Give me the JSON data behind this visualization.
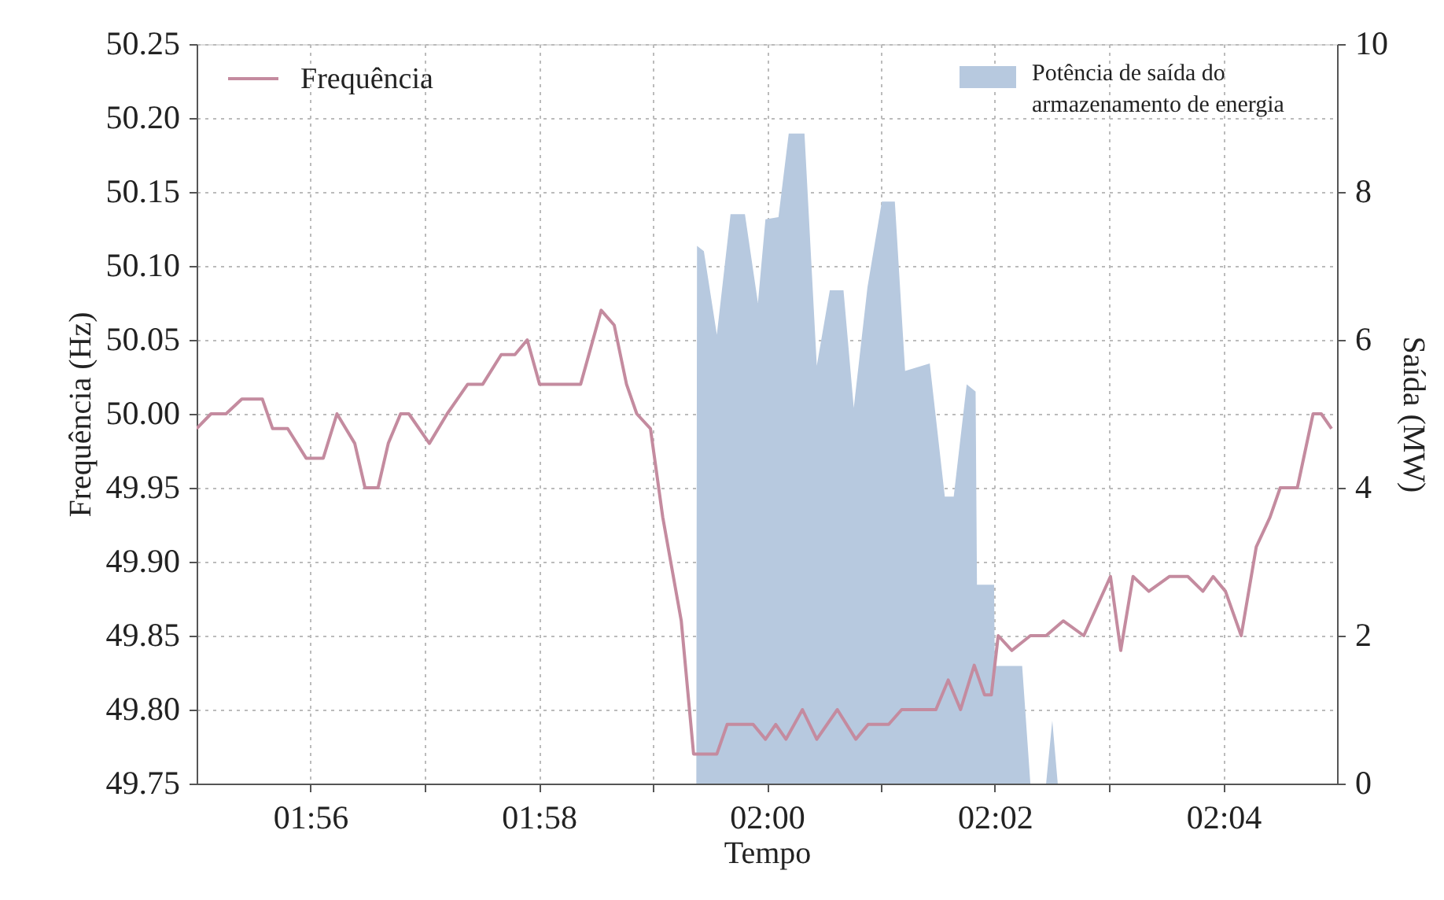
{
  "chart_data": {
    "type": "line",
    "xlabel": "Tempo",
    "ylabel": "Frequência (Hz)",
    "y2label": "Saída (MW)",
    "xlim": [
      1.9167,
      2.0833
    ],
    "xticks": [
      {
        "value": 1.9333,
        "label": "01:56"
      },
      {
        "value": 1.95,
        "label": null
      },
      {
        "value": 1.9667,
        "label": "01:58"
      },
      {
        "value": 1.9833,
        "label": null
      },
      {
        "value": 2.0,
        "label": "02:00"
      },
      {
        "value": 2.0167,
        "label": null
      },
      {
        "value": 2.0333,
        "label": "02:02"
      },
      {
        "value": 2.05,
        "label": null
      },
      {
        "value": 2.0667,
        "label": "02:04"
      }
    ],
    "ylim": [
      49.75,
      50.25
    ],
    "yticks": [
      49.75,
      {
        "value": 49.8,
        "label": "49.80"
      },
      49.85,
      {
        "value": 49.9,
        "label": "49.90"
      },
      49.95,
      {
        "value": 50.0,
        "label": "50.00"
      },
      50.05,
      {
        "value": 50.1,
        "label": "50.10"
      },
      50.15,
      {
        "value": 50.2,
        "label": "50.20"
      },
      50.25
    ],
    "y2lim": [
      0,
      10
    ],
    "y2ticks": [
      0,
      2,
      4,
      6,
      8,
      10
    ],
    "grid": true,
    "legend": "top",
    "line_style": "solid",
    "series": [
      {
        "name": "Potência de saída do armazenamento de energia",
        "type": "area",
        "axis": "y2",
        "color": "#b7c9df",
        "x": [
          1.9897,
          1.9898,
          1.9908,
          1.9927,
          1.9947,
          1.9968,
          1.9987,
          1.9998,
          2.0017,
          2.0032,
          2.0055,
          2.0073,
          2.0092,
          2.0112,
          2.0127,
          2.0147,
          2.0168,
          2.0187,
          2.0202,
          2.0238,
          2.026,
          2.0273,
          2.0292,
          2.0305,
          2.0307,
          2.0332,
          2.0333,
          2.0373,
          2.0385,
          2.0408,
          2.0417,
          2.0425
        ],
        "values": [
          0,
          7.27,
          7.2,
          6.07,
          7.7,
          7.7,
          6.5,
          7.63,
          7.66,
          8.79,
          8.79,
          5.65,
          6.67,
          6.67,
          5.08,
          6.71,
          7.87,
          7.87,
          5.58,
          5.68,
          3.88,
          3.88,
          5.4,
          5.3,
          2.69,
          2.69,
          1.59,
          1.59,
          0,
          0,
          0.85,
          0
        ]
      },
      {
        "name": "Frequência",
        "axis": "y",
        "color": "#c48b9f",
        "x": [
          1.9167,
          1.9188,
          1.921,
          1.9233,
          1.9263,
          1.9278,
          1.93,
          1.9327,
          1.9352,
          1.9372,
          1.9398,
          1.9413,
          1.9432,
          1.9447,
          1.9465,
          1.9477,
          1.9507,
          1.9533,
          1.9563,
          1.9585,
          1.9612,
          1.9632,
          1.965,
          1.9668,
          1.9683,
          1.9728,
          1.9758,
          1.9777,
          1.9795,
          1.981,
          1.983,
          1.9848,
          1.9875,
          1.9887,
          1.9893,
          1.9908,
          1.9927,
          1.9942,
          1.9962,
          1.998,
          1.9998,
          2.0013,
          2.0028,
          2.0052,
          2.0073,
          2.0103,
          2.013,
          2.0148,
          2.0178,
          2.0197,
          2.0223,
          2.0247,
          2.0265,
          2.0283,
          2.0303,
          2.0318,
          2.0328,
          2.0338,
          2.0358,
          2.0385,
          2.0408,
          2.0433,
          2.0463,
          2.0502,
          2.0517,
          2.0535,
          2.0558,
          2.0588,
          2.0615,
          2.0637,
          2.0652,
          2.067,
          2.0693,
          2.0715,
          2.0735,
          2.075,
          2.0775,
          2.0798,
          2.081,
          2.0825
        ],
        "values": [
          49.99,
          50.0,
          50.0,
          50.01,
          50.01,
          49.99,
          49.99,
          49.97,
          49.97,
          50.0,
          49.98,
          49.95,
          49.95,
          49.98,
          50.0,
          50.0,
          49.98,
          50.0,
          50.02,
          50.02,
          50.04,
          50.04,
          50.05,
          50.02,
          50.02,
          50.02,
          50.07,
          50.06,
          50.02,
          50.0,
          49.99,
          49.93,
          49.86,
          49.8,
          49.77,
          49.77,
          49.77,
          49.79,
          49.79,
          49.79,
          49.78,
          49.79,
          49.78,
          49.8,
          49.78,
          49.8,
          49.78,
          49.79,
          49.79,
          49.8,
          49.8,
          49.8,
          49.82,
          49.8,
          49.83,
          49.81,
          49.81,
          49.85,
          49.84,
          49.85,
          49.85,
          49.86,
          49.85,
          49.89,
          49.84,
          49.89,
          49.88,
          49.89,
          49.89,
          49.88,
          49.89,
          49.88,
          49.85,
          49.91,
          49.93,
          49.95,
          49.95,
          50.0,
          50.0,
          49.99
        ]
      }
    ]
  }
}
